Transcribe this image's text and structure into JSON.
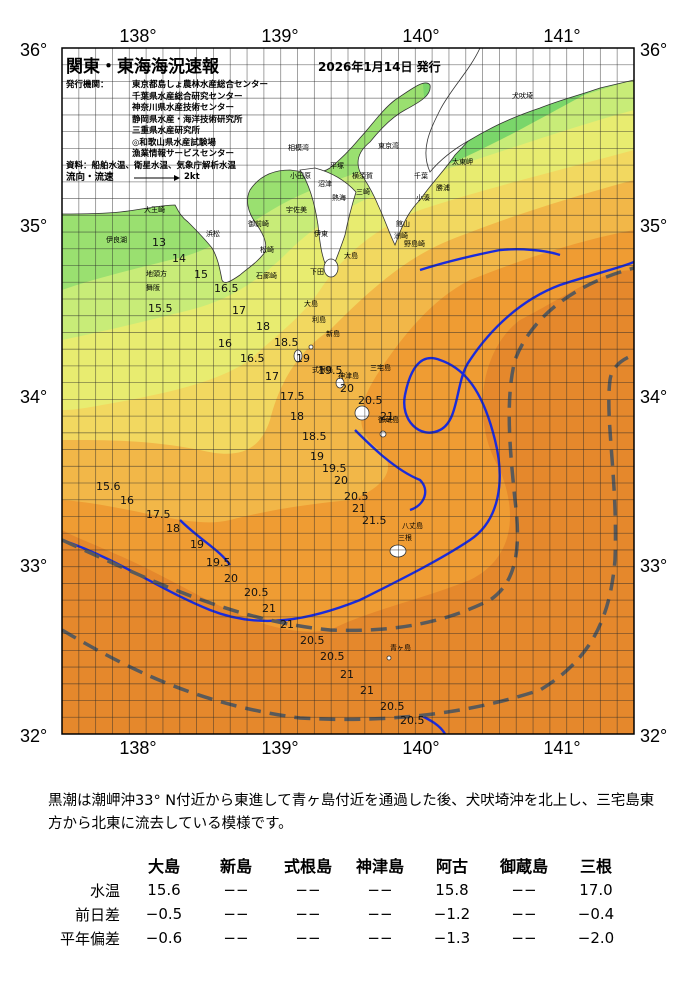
{
  "map": {
    "title": "関東・東海海況速報",
    "issue_date": "2026年1月14日 発行",
    "issuer_label": "発行機関：",
    "issuers": [
      "東京都島しょ農林水産総合センター",
      "千葉県水産総合研究センター",
      "神奈川県水産技術センター",
      "静岡県水産・海洋技術研究所",
      "三重県水産研究所",
      "◎和歌山県水産試験場",
      "漁業情報サービスセンター"
    ],
    "sources_label": "資料：",
    "sources": "船舶水温、衛星水温、気象庁解析水温",
    "flow_label": "流向・流速",
    "flow_scale": "2kt",
    "lon_labels": [
      "138°",
      "139°",
      "140°",
      "141°"
    ],
    "lat_labels": [
      "36°",
      "35°",
      "34°",
      "33°",
      "32°"
    ],
    "isotherm_labels": [
      "15.5",
      "16",
      "16.5",
      "17",
      "17.5",
      "18",
      "18.5",
      "19",
      "19.5",
      "20",
      "20.5",
      "21",
      "21.5",
      "13",
      "14",
      "15",
      "16.5",
      "17",
      "18",
      "18.5",
      "19",
      "19.5",
      "20",
      "20.5",
      "21",
      "15.6",
      "16",
      "17.5",
      "18",
      "19",
      "19.5",
      "20",
      "20.5",
      "21",
      "21",
      "20.5",
      "20.5",
      "21",
      "21",
      "20.5",
      "20.5"
    ],
    "place_names": [
      "犬吠埼",
      "太東岬",
      "勝浦",
      "小湊",
      "洲崎",
      "野島崎",
      "館山",
      "千葉",
      "横須賀",
      "三崎",
      "平塚",
      "小田原",
      "熱海",
      "伊東",
      "大島",
      "下田",
      "石廊崎",
      "御前崎",
      "浜松",
      "地頭方",
      "舞阪",
      "伊良湖",
      "大王崎",
      "大島",
      "利島",
      "新島",
      "式根島",
      "神津島",
      "三宅島",
      "御蔵島",
      "八丈島",
      "三根",
      "青ヶ島",
      "沼津",
      "宇佐美",
      "松崎",
      "相模湾",
      "東京湾"
    ],
    "colors": {
      "land": "#ffffff",
      "grid": "#2a2a2a",
      "current": "#1a2bdc",
      "kuroshio_axis": "#5a5a5a",
      "t12": "#5fcfa2",
      "t14": "#7ad66a",
      "t15": "#9ae070",
      "t16": "#c8ec78",
      "t17": "#e8ec70",
      "t18": "#f2d860",
      "t19": "#f2b748",
      "t20": "#ef9c33",
      "t21": "#e5882c"
    }
  },
  "summary": "黒潮は潮岬沖33° N付近から東進して青ヶ島付近を通過した後、犬吠埼沖を北上し、三宅島東方から北東に流去している模様です。",
  "table": {
    "columns": [
      "",
      "大島",
      "新島",
      "式根島",
      "神津島",
      "阿古",
      "御蔵島",
      "三根"
    ],
    "rows": [
      {
        "label": "水温",
        "values": [
          "15.6",
          "−−",
          "−−",
          "−−",
          "15.8",
          "−−",
          "17.0"
        ]
      },
      {
        "label": "前日差",
        "values": [
          "−0.5",
          "−−",
          "−−",
          "−−",
          "−1.2",
          "−−",
          "−0.4"
        ]
      },
      {
        "label": "平年偏差",
        "values": [
          "−0.6",
          "−−",
          "−−",
          "−−",
          "−1.3",
          "−−",
          "−2.0"
        ]
      }
    ]
  }
}
